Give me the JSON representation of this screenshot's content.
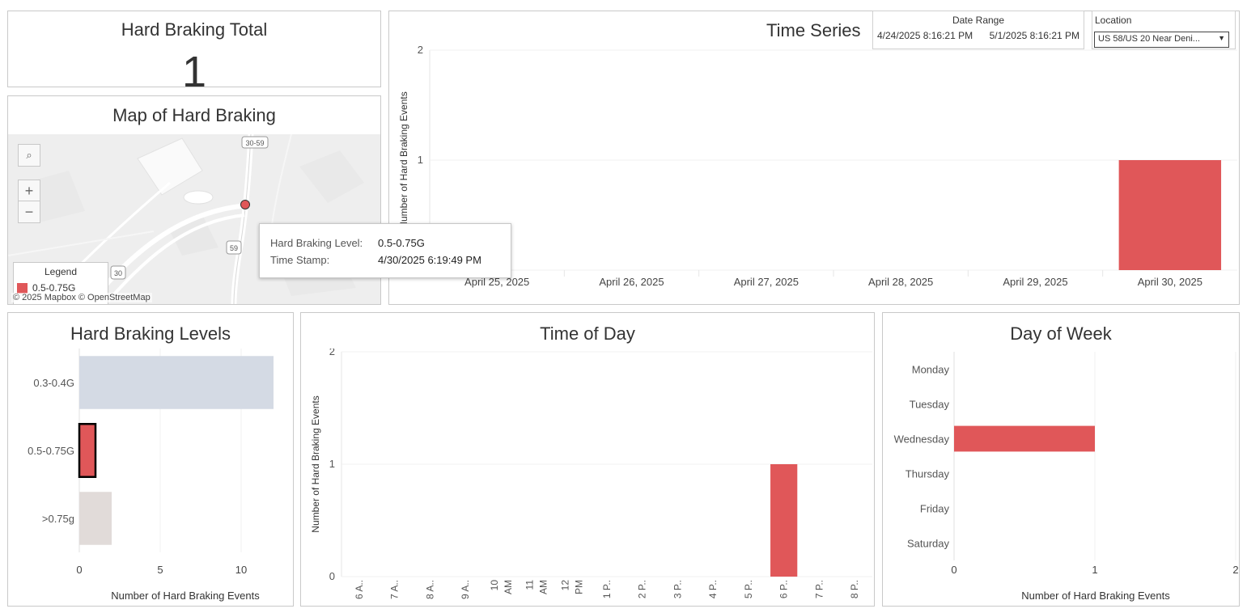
{
  "kpi": {
    "title": "Hard Braking Total",
    "value": "1"
  },
  "map": {
    "title": "Map of Hard Braking",
    "attribution": "© 2025 Mapbox  © OpenStreetMap",
    "route_labels": [
      "30-59",
      "59",
      "30"
    ],
    "zoom_in": "+",
    "zoom_out": "−",
    "legend_title": "Legend",
    "legend_item": "0.5-0.75G",
    "legend_color": "#e05759"
  },
  "tooltip": {
    "level_label": "Hard Braking Level:",
    "level_value": "0.5-0.75G",
    "time_label": "Time Stamp:",
    "time_value": "4/30/2025 6:19:49 PM"
  },
  "time_series": {
    "title": "Time Series"
  },
  "date_range": {
    "label": "Date Range",
    "start": "4/24/2025 8:16:21 PM",
    "end": "5/1/2025 8:16:21 PM"
  },
  "location": {
    "label": "Location",
    "value": "US 58/US 20 Near Deni..."
  },
  "levels": {
    "title": "Hard Braking Levels"
  },
  "time_of_day": {
    "title": "Time of Day"
  },
  "day_of_week": {
    "title": "Day of Week"
  },
  "chart_data": [
    {
      "type": "bar",
      "title": "Time Series",
      "ylabel": "Number of Hard Braking Events",
      "categories": [
        "April 25, 2025",
        "April 26, 2025",
        "April 27, 2025",
        "April 28, 2025",
        "April 29, 2025",
        "April 30, 2025"
      ],
      "values": [
        0,
        0,
        0,
        0,
        0,
        1
      ],
      "yticks": [
        "2",
        "1"
      ],
      "ylim": [
        0,
        2
      ],
      "color": "#e05759",
      "grid": true
    },
    {
      "type": "bar",
      "orientation": "horizontal",
      "title": "Hard Braking Levels",
      "xlabel": "Number of Hard Braking Events",
      "categories": [
        "0.3-0.4G",
        "0.5-0.75G",
        ">0.75g"
      ],
      "values": [
        12,
        1,
        2
      ],
      "colors": [
        "#d4dae4",
        "#e05759",
        "#e1dbd9"
      ],
      "highlighted": "0.5-0.75G",
      "xticks": [
        "0",
        "5",
        "10"
      ],
      "xlim": [
        0,
        13
      ]
    },
    {
      "type": "bar",
      "title": "Time of Day",
      "ylabel": "Number of Hard Braking Events",
      "categories": [
        "6 A..",
        "7 A..",
        "8 A..",
        "9 A..",
        "10 AM",
        "11 AM",
        "12 PM",
        "1 P..",
        "2 P..",
        "3 P..",
        "4 P..",
        "5 P..",
        "6 P..",
        "7 P..",
        "8 P.."
      ],
      "values": [
        0,
        0,
        0,
        0,
        0,
        0,
        0,
        0,
        0,
        0,
        0,
        0,
        1,
        0,
        0
      ],
      "yticks": [
        "2",
        "1",
        "0"
      ],
      "ylim": [
        0,
        2
      ],
      "color": "#e05759",
      "grid": true
    },
    {
      "type": "bar",
      "orientation": "horizontal",
      "title": "Day of Week",
      "xlabel": "Number of Hard Braking Events",
      "categories": [
        "Monday",
        "Tuesday",
        "Wednesday",
        "Thursday",
        "Friday",
        "Saturday"
      ],
      "values": [
        0,
        0,
        1,
        0,
        0,
        0
      ],
      "xticks": [
        "0",
        "1",
        "2"
      ],
      "xlim": [
        0,
        2
      ],
      "color": "#e05759",
      "grid": true
    }
  ]
}
